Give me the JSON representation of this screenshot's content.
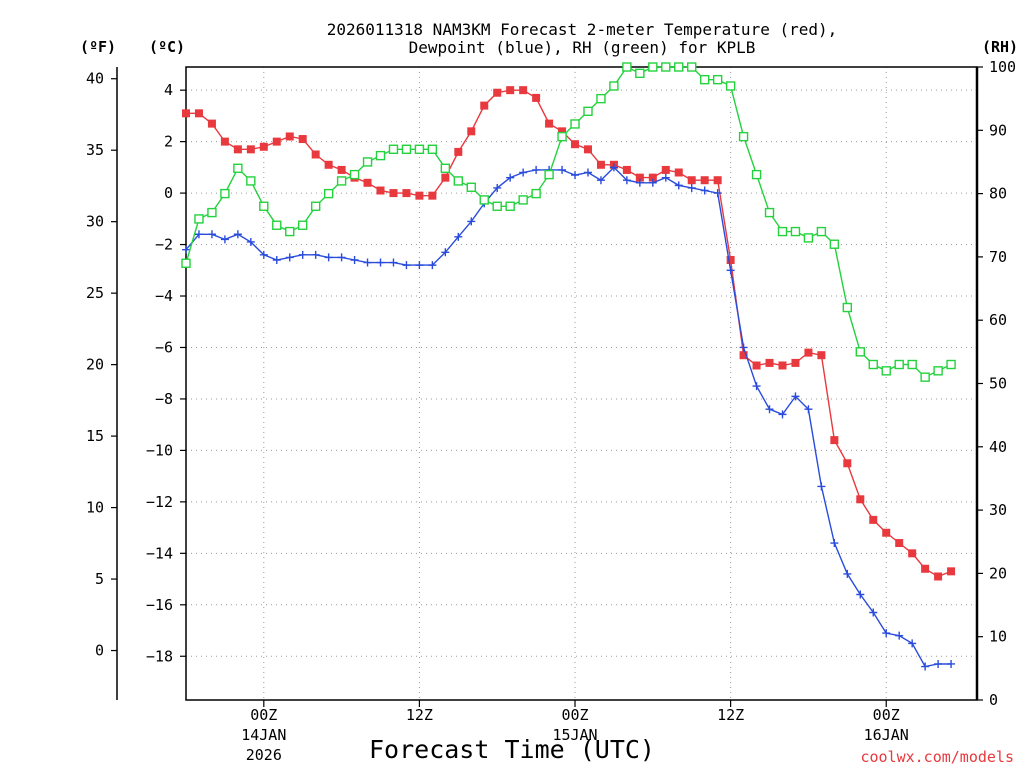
{
  "chart_data": {
    "type": "line",
    "title_line1": "2026011318 NAM3KM Forecast 2-meter Temperature (red),",
    "title_line2": "Dewpoint (blue), RH (green) for KPLB",
    "xlabel": "Forecast Time (UTC)",
    "credit": "coolwx.com/models",
    "unit_f": "(ºF)",
    "unit_c": "(ºC)",
    "unit_rh": "(RH)",
    "x_hours_range": [
      18,
      79
    ],
    "x_ticks": [
      {
        "hour": 24,
        "label": "00Z",
        "date": "14JAN",
        "year": "2026"
      },
      {
        "hour": 36,
        "label": "12Z",
        "date": "",
        "year": ""
      },
      {
        "hour": 48,
        "label": "00Z",
        "date": "15JAN",
        "year": ""
      },
      {
        "hour": 60,
        "label": "12Z",
        "date": "",
        "year": ""
      },
      {
        "hour": 72,
        "label": "00Z",
        "date": "16JAN",
        "year": ""
      }
    ],
    "celsius_axis": {
      "range": [
        -19.7,
        4.9
      ],
      "ticks": [
        "4",
        "2",
        "0",
        "−2",
        "−4",
        "−6",
        "−8",
        "−10",
        "−12",
        "−14",
        "−16",
        "−18"
      ],
      "tick_values": [
        4,
        2,
        0,
        -2,
        -4,
        -6,
        -8,
        -10,
        -12,
        -14,
        -16,
        -18
      ]
    },
    "fahrenheit_axis": {
      "ticks": [
        "40",
        "35",
        "30",
        "25",
        "20",
        "15",
        "10",
        "5",
        "0"
      ],
      "tick_values": [
        40,
        35,
        30,
        25,
        20,
        15,
        10,
        5,
        0
      ]
    },
    "rh_axis": {
      "range": [
        0,
        100
      ],
      "ticks": [
        "100",
        "90",
        "80",
        "70",
        "60",
        "50",
        "40",
        "30",
        "20",
        "10",
        "0"
      ],
      "tick_values": [
        100,
        90,
        80,
        70,
        60,
        50,
        40,
        30,
        20,
        10,
        0
      ]
    },
    "series": [
      {
        "name": "Temperature",
        "color": "#e8393e",
        "marker": "filled-square",
        "axis": "celsius",
        "values": [
          3.1,
          3.1,
          2.7,
          2.0,
          1.7,
          1.7,
          1.8,
          2.0,
          2.2,
          2.1,
          1.5,
          1.1,
          0.9,
          0.6,
          0.4,
          0.1,
          0.0,
          0.0,
          -0.1,
          -0.1,
          0.6,
          1.6,
          2.4,
          3.4,
          3.9,
          4.0,
          4.0,
          3.7,
          2.7,
          2.4,
          1.9,
          1.7,
          1.1,
          1.1,
          0.9,
          0.6,
          0.6,
          0.9,
          0.8,
          0.5,
          0.5,
          0.5,
          -2.6,
          -6.3,
          -6.7,
          -6.6,
          -6.7,
          -6.6,
          -6.2,
          -6.3,
          -9.6,
          -10.5,
          -11.9,
          -12.7,
          -13.2,
          -13.6,
          -14.0,
          -14.6,
          -14.9,
          -14.7
        ]
      },
      {
        "name": "Dewpoint",
        "color": "#2a4cdc",
        "marker": "plus",
        "axis": "celsius",
        "values": [
          -2.2,
          -1.6,
          -1.6,
          -1.8,
          -1.6,
          -1.9,
          -2.4,
          -2.6,
          -2.5,
          -2.4,
          -2.4,
          -2.5,
          -2.5,
          -2.6,
          -2.7,
          -2.7,
          -2.7,
          -2.8,
          -2.8,
          -2.8,
          -2.3,
          -1.7,
          -1.1,
          -0.4,
          0.2,
          0.6,
          0.8,
          0.9,
          0.9,
          0.9,
          0.7,
          0.8,
          0.5,
          1.0,
          0.5,
          0.4,
          0.4,
          0.6,
          0.3,
          0.2,
          0.1,
          0.0,
          -3.0,
          -6.0,
          -7.5,
          -8.4,
          -8.6,
          -7.9,
          -8.4,
          -11.4,
          -13.6,
          -14.8,
          -15.6,
          -16.3,
          -17.1,
          -17.2,
          -17.5,
          -18.4,
          -18.3,
          -18.3
        ]
      },
      {
        "name": "RH",
        "color": "#23d23c",
        "marker": "open-square",
        "axis": "rh",
        "values": [
          69,
          76,
          77,
          80,
          84,
          82,
          78,
          75,
          74,
          75,
          78,
          80,
          82,
          83,
          85,
          86,
          87,
          87,
          87,
          87,
          84,
          82,
          81,
          79,
          78,
          78,
          79,
          80,
          83,
          89,
          91,
          93,
          95,
          97,
          100,
          99,
          100,
          100,
          100,
          100,
          98,
          98,
          97,
          89,
          83,
          77,
          74,
          74,
          73,
          74,
          72,
          62,
          55,
          53,
          52,
          53,
          53,
          51,
          52,
          53
        ]
      }
    ]
  }
}
